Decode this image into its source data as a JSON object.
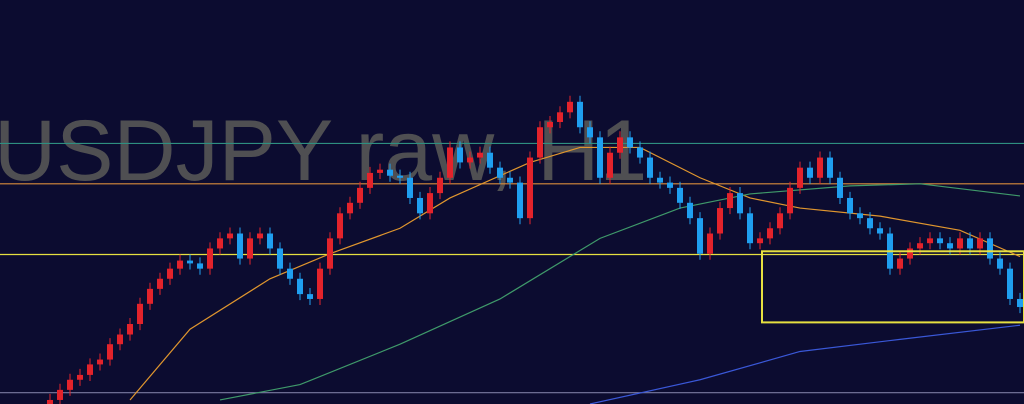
{
  "chart_data": {
    "type": "candlestick",
    "title": "USDJPY raw, H1",
    "ylim": [
      0,
      100
    ],
    "up_color": "#e3232b",
    "down_color": "#1f9ff0",
    "background": "#0c0c30",
    "open": [
      0,
      1,
      3.5,
      6,
      7.2,
      9.8,
      11,
      14.8,
      17.2,
      19.8,
      24.8,
      28.5,
      31,
      33.5,
      35.5,
      34.8,
      33.5,
      38.5,
      41,
      42.2,
      36,
      41,
      42.2,
      38.5,
      33.5,
      31,
      27.2,
      26,
      33.5,
      41,
      47.2,
      49.8,
      53.5,
      57.2,
      58,
      56.5,
      56,
      51,
      47.2,
      52.2,
      56,
      63.5,
      59.8,
      61,
      62.2,
      58.5,
      56,
      54.8,
      46,
      61,
      68.5,
      69.8,
      72.2,
      74.8,
      68.5,
      66,
      56,
      62.2,
      66,
      63.5,
      61,
      56,
      54.8,
      53.5,
      49.8,
      46,
      37.2,
      42.2,
      48.5,
      52.2,
      47.2,
      39.8,
      41,
      43.5,
      47.2,
      53.5,
      58.5,
      56,
      61,
      56,
      51,
      47.2,
      46,
      43.5,
      42.2,
      33.5,
      36,
      38.5,
      39.8,
      41,
      39.8,
      38.5,
      41,
      38.5,
      41,
      36,
      33.5,
      26
    ],
    "high": [
      2.5,
      5,
      7.5,
      8.7,
      11.3,
      12.5,
      16.3,
      18.7,
      21.3,
      26.3,
      30,
      32.5,
      35,
      37,
      37,
      36.3,
      40,
      42.5,
      43.7,
      43.7,
      42.5,
      43.7,
      43.7,
      40,
      35,
      32.5,
      28.7,
      35,
      42.5,
      48.7,
      51.3,
      55,
      58.7,
      59.5,
      59.5,
      58,
      57.5,
      52.5,
      53.7,
      57.5,
      65,
      65,
      62.5,
      63.7,
      63.7,
      60,
      57.5,
      56.3,
      62.5,
      70,
      71.3,
      73.7,
      76.3,
      76.3,
      70,
      67.5,
      63.7,
      67.5,
      67.5,
      65,
      62.5,
      57.5,
      56.3,
      55,
      51.3,
      47.5,
      43.7,
      50,
      53.7,
      53.7,
      48.7,
      42.5,
      45,
      48.7,
      55,
      60,
      60,
      62.5,
      62.5,
      57.5,
      52.5,
      48.7,
      47.5,
      45,
      43.7,
      37.5,
      40,
      41.3,
      42.5,
      42.5,
      41.3,
      42.5,
      42.5,
      42.5,
      42.5,
      37.5,
      35,
      27.5
    ],
    "low": [
      0,
      0,
      2,
      4.5,
      5.7,
      8.3,
      9.5,
      13.3,
      15.7,
      18.3,
      23.3,
      27,
      29.5,
      32,
      33.3,
      32,
      32,
      37,
      39.5,
      34.5,
      34.5,
      39.5,
      37,
      32,
      29.5,
      25.7,
      24.5,
      24.5,
      32,
      39.5,
      45.7,
      48.3,
      52,
      55.7,
      55,
      54.5,
      49.5,
      45.7,
      45.7,
      50.7,
      54.5,
      58.3,
      58.3,
      59.5,
      57,
      54.5,
      53.3,
      44.5,
      44.5,
      59.5,
      67,
      68.3,
      70.7,
      67,
      64.5,
      54.5,
      54.5,
      60.7,
      62,
      59.5,
      54.5,
      53.3,
      52,
      48.3,
      44.5,
      35.7,
      35.7,
      40.7,
      47,
      45.7,
      38.3,
      38.3,
      39.5,
      42,
      45.7,
      52,
      54.5,
      54.5,
      54.5,
      49.5,
      45.7,
      44.5,
      42,
      40.7,
      32,
      32,
      34.5,
      37,
      38.3,
      38.3,
      37,
      37,
      37,
      37,
      34.5,
      32,
      24.5,
      22.5
    ],
    "close": [
      1,
      3.5,
      6,
      7.2,
      9.8,
      11,
      14.8,
      17.2,
      19.8,
      24.8,
      28.5,
      31,
      33.5,
      35.5,
      34.8,
      33.5,
      38.5,
      41,
      42.2,
      36,
      41,
      42.2,
      38.5,
      33.5,
      31,
      27.2,
      26,
      33.5,
      41,
      47.2,
      49.8,
      53.5,
      57.2,
      58,
      56.5,
      56,
      51,
      47.2,
      52.2,
      56,
      63.5,
      59.8,
      61,
      62.2,
      58.5,
      56,
      54.8,
      46,
      61,
      68.5,
      69.8,
      72.2,
      74.8,
      68.5,
      66,
      56,
      62.2,
      66,
      63.5,
      61,
      56,
      54.8,
      53.5,
      49.8,
      46,
      37.2,
      42.2,
      48.5,
      52.2,
      47.2,
      39.8,
      41,
      43.5,
      47.2,
      53.5,
      58.5,
      56,
      61,
      56,
      51,
      47.2,
      46,
      43.5,
      42.2,
      33.5,
      36,
      38.5,
      39.8,
      41,
      39.8,
      38.5,
      41,
      38.5,
      41,
      36,
      33.5,
      26,
      24
    ],
    "lines": [
      {
        "color": "#e0962e",
        "x": [
          8,
          14,
          22,
          28,
          35,
          40,
          48,
          53,
          59,
          65,
          70,
          75,
          83,
          91,
          97
        ],
        "values": [
          1,
          18.5,
          31,
          37.2,
          43.5,
          51,
          59.8,
          63.5,
          63.5,
          56,
          51,
          48.5,
          46.5,
          43,
          36.5
        ]
      },
      {
        "color": "#3f9a6a",
        "x": [
          17,
          25,
          35,
          45,
          55,
          63,
          70,
          80,
          87,
          97
        ],
        "values": [
          1,
          4.8,
          14.8,
          26,
          41,
          48.5,
          52,
          54,
          54.5,
          51.5
        ]
      },
      {
        "color": "#3a58d8",
        "x": [
          54,
          65,
          75,
          85,
          97
        ],
        "values": [
          0,
          6,
          13,
          16,
          19.5
        ]
      }
    ],
    "levels": [
      {
        "value": 64.5,
        "color": "#2e8f80"
      },
      {
        "value": 54.5,
        "color": "#d98c3a"
      },
      {
        "value": 37,
        "color": "#e6e040"
      },
      {
        "value": 2.8,
        "color": "#7a7aa0"
      }
    ],
    "zone": {
      "x": [
        71.2,
        97.4
      ],
      "y": [
        20.2,
        37.8
      ],
      "color": "#e6e040"
    }
  }
}
